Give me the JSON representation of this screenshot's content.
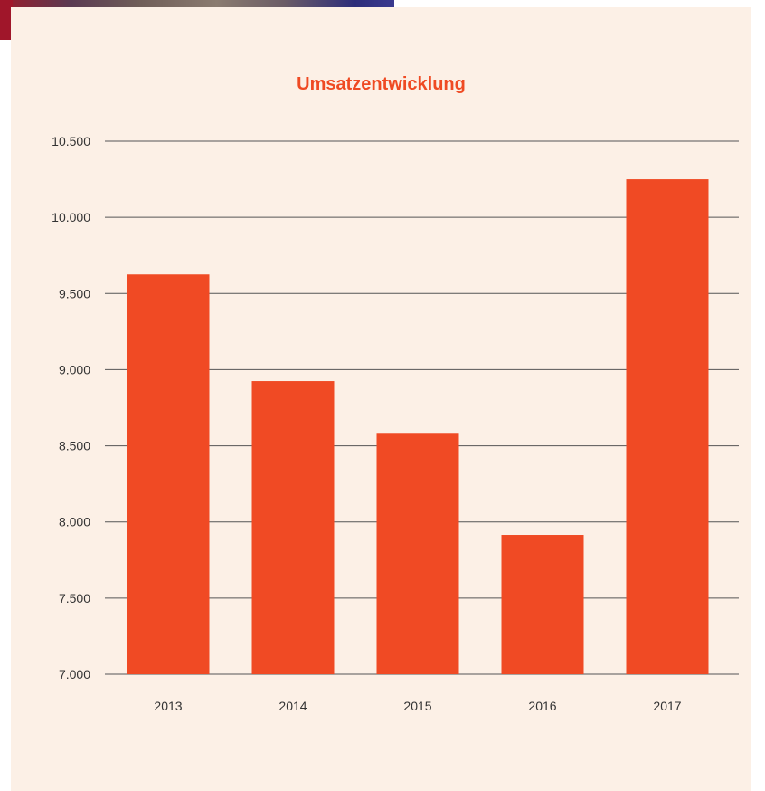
{
  "colors": {
    "bar": "#f04a24",
    "title": "#ef4a23",
    "card_background": "#fcf0e6",
    "grid": "#555555",
    "tick_text": "#333333"
  },
  "chart_data": {
    "type": "bar",
    "title": "Umsatzentwicklung",
    "xlabel": "",
    "ylabel": "",
    "categories": [
      "2013",
      "2014",
      "2015",
      "2016",
      "2017"
    ],
    "values": [
      9625,
      8925,
      8585,
      7915,
      10250
    ],
    "ylim": [
      7000,
      10500
    ],
    "yticks": [
      7000,
      7500,
      8000,
      8500,
      9000,
      9500,
      10000,
      10500
    ],
    "ytick_labels": [
      "7.000",
      "7.500",
      "8.000",
      "8.500",
      "9.000",
      "9.500",
      "10.000",
      "10.500"
    ],
    "grid": true,
    "legend": "none"
  }
}
